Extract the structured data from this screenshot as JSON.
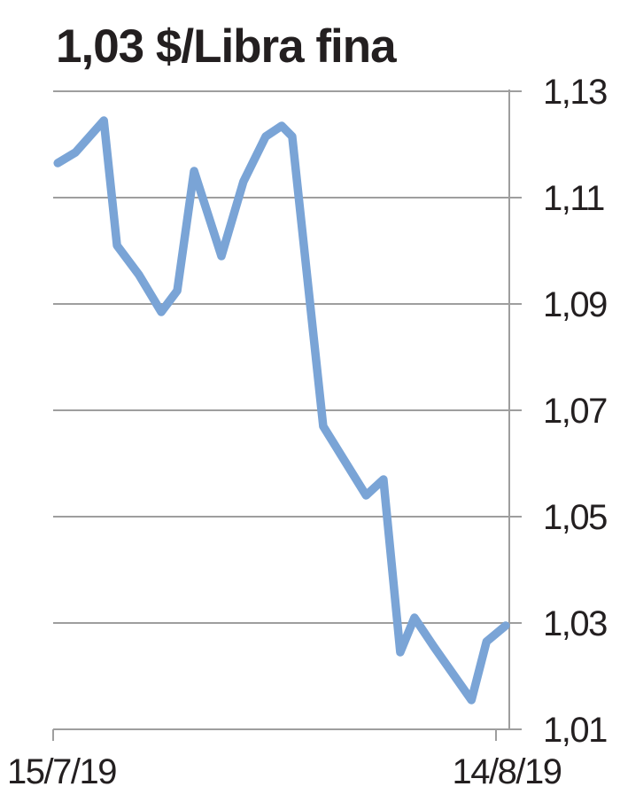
{
  "chart": {
    "title": "1,03 $/Libra fina"
  },
  "chart_data": {
    "type": "line",
    "title": "1,03 $/Libra fina",
    "unit": "$/Libra fina",
    "current_value": "1,03",
    "line_color": "#7aa4d6",
    "grid_color": "#9e9e9e",
    "text_color": "#231f20",
    "x_labels": [
      "15/7/19",
      "14/8/19"
    ],
    "ylim": [
      1.01,
      1.13
    ],
    "y_ticks": [
      {
        "label": "1,13",
        "value": 1.13
      },
      {
        "label": "1,11",
        "value": 1.11
      },
      {
        "label": "1,09",
        "value": 1.09
      },
      {
        "label": "1,07",
        "value": 1.07
      },
      {
        "label": "1,05",
        "value": 1.05
      },
      {
        "label": "1,03",
        "value": 1.03
      },
      {
        "label": "1,01",
        "value": 1.01
      }
    ],
    "grid": true,
    "legend": "none",
    "points": [
      [
        0.01,
        1.1165
      ],
      [
        0.049,
        1.1185
      ],
      [
        0.111,
        1.1245
      ],
      [
        0.14,
        1.101
      ],
      [
        0.188,
        1.0955
      ],
      [
        0.237,
        1.0885
      ],
      [
        0.272,
        1.0925
      ],
      [
        0.309,
        1.115
      ],
      [
        0.369,
        1.099
      ],
      [
        0.417,
        1.113
      ],
      [
        0.466,
        1.1215
      ],
      [
        0.501,
        1.1235
      ],
      [
        0.524,
        1.1215
      ],
      [
        0.592,
        1.067
      ],
      [
        0.686,
        1.054
      ],
      [
        0.724,
        1.057
      ],
      [
        0.761,
        1.0245
      ],
      [
        0.792,
        1.031
      ],
      [
        0.835,
        1.0255
      ],
      [
        0.917,
        1.0155
      ],
      [
        0.95,
        1.0265
      ],
      [
        0.992,
        1.0295
      ]
    ]
  }
}
